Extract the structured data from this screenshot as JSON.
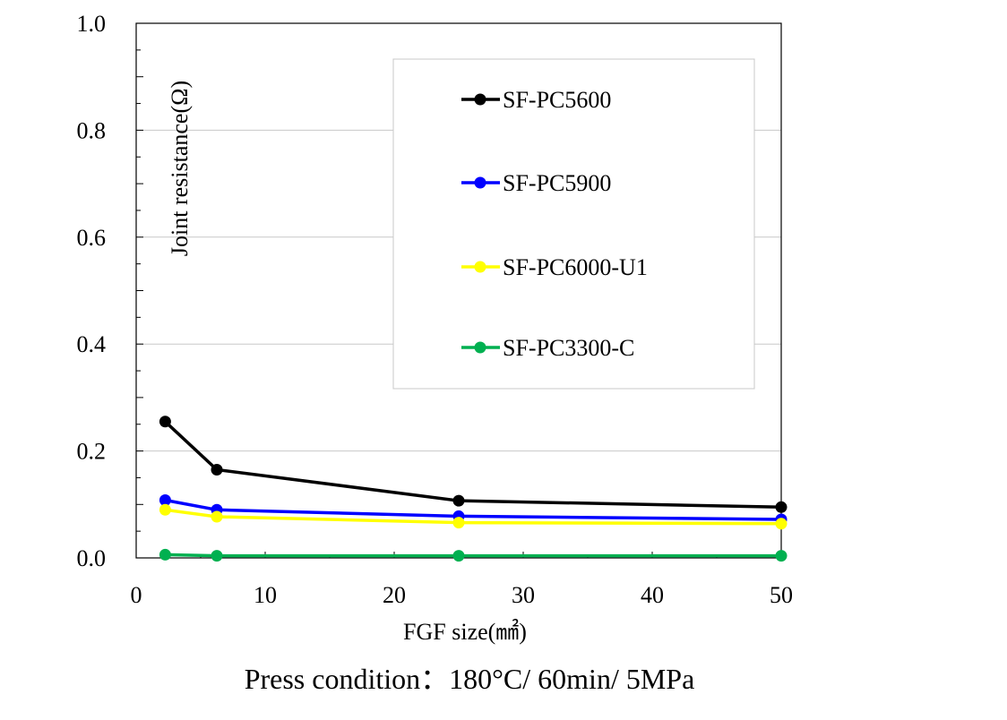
{
  "chart_data": {
    "type": "line",
    "xlabel": "FGF size(㎟)",
    "ylabel": "Joint resistance(Ω)",
    "xlim": [
      0,
      50
    ],
    "ylim": [
      0.0,
      1.0
    ],
    "xticks": [
      0,
      10,
      20,
      30,
      40,
      50
    ],
    "yticks": [
      0.0,
      0.2,
      0.4,
      0.6,
      0.8,
      1.0
    ],
    "xtick_labels": [
      "0",
      "10",
      "20",
      "30",
      "40",
      "50"
    ],
    "ytick_labels": [
      "0.0",
      "0.2",
      "0.4",
      "0.6",
      "0.8",
      "1.0"
    ],
    "grid": "horizontal",
    "legend_position": "top-right",
    "x": [
      2.25,
      6.25,
      25,
      50
    ],
    "series": [
      {
        "name": "SF-PC5600",
        "color": "#000000",
        "values": [
          0.255,
          0.165,
          0.107,
          0.095
        ]
      },
      {
        "name": "SF-PC5900",
        "color": "#0000ff",
        "values": [
          0.108,
          0.09,
          0.078,
          0.072
        ]
      },
      {
        "name": "SF-PC6000-U1",
        "color": "#ffff00",
        "values": [
          0.09,
          0.077,
          0.066,
          0.064
        ]
      },
      {
        "name": "SF-PC3300-C",
        "color": "#00b050",
        "values": [
          0.006,
          0.004,
          0.004,
          0.004
        ]
      }
    ],
    "caption": "Press condition：180°C/ 60min/ 5MPa"
  }
}
